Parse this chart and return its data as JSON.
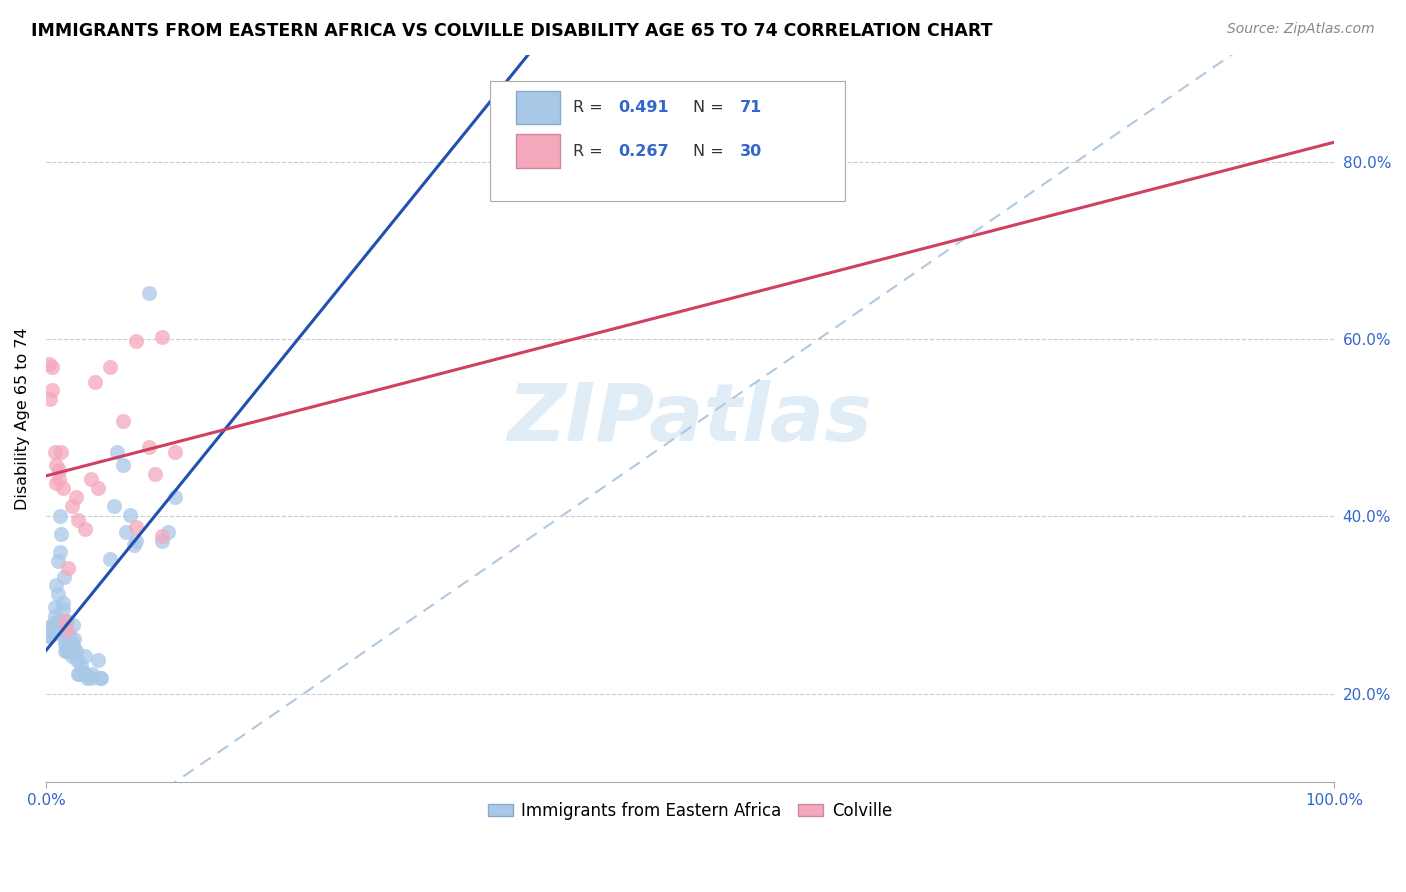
{
  "title": "IMMIGRANTS FROM EASTERN AFRICA VS COLVILLE DISABILITY AGE 65 TO 74 CORRELATION CHART",
  "source": "Source: ZipAtlas.com",
  "ylabel": "Disability Age 65 to 74",
  "legend_label1": "Immigrants from Eastern Africa",
  "legend_label2": "Colville",
  "color_blue": "#a8c8e8",
  "color_pink": "#f4a8bc",
  "line_blue": "#2050b0",
  "line_pink": "#d04060",
  "diag_color": "#b0c8e0",
  "watermark": "ZIPatlas",
  "xlim": [
    0.0,
    1.0
  ],
  "ylim": [
    0.1,
    0.92
  ],
  "x_tick_positions": [
    0.0,
    1.0
  ],
  "x_tick_labels": [
    "0.0%",
    "100.0%"
  ],
  "y_tick_positions": [
    0.2,
    0.4,
    0.6,
    0.8
  ],
  "y_tick_labels": [
    "20.0%",
    "40.0%",
    "60.0%",
    "80.0%"
  ],
  "blue_points": [
    [
      0.002,
      0.275
    ],
    [
      0.002,
      0.265
    ],
    [
      0.003,
      0.27
    ],
    [
      0.003,
      0.265
    ],
    [
      0.004,
      0.27
    ],
    [
      0.004,
      0.275
    ],
    [
      0.005,
      0.27
    ],
    [
      0.005,
      0.268
    ],
    [
      0.006,
      0.28
    ],
    [
      0.006,
      0.272
    ],
    [
      0.007,
      0.268
    ],
    [
      0.007,
      0.298
    ],
    [
      0.007,
      0.288
    ],
    [
      0.008,
      0.278
    ],
    [
      0.008,
      0.322
    ],
    [
      0.009,
      0.35
    ],
    [
      0.009,
      0.312
    ],
    [
      0.01,
      0.272
    ],
    [
      0.01,
      0.282
    ],
    [
      0.01,
      0.276
    ],
    [
      0.011,
      0.36
    ],
    [
      0.011,
      0.4
    ],
    [
      0.012,
      0.38
    ],
    [
      0.012,
      0.272
    ],
    [
      0.013,
      0.302
    ],
    [
      0.013,
      0.296
    ],
    [
      0.014,
      0.332
    ],
    [
      0.014,
      0.272
    ],
    [
      0.015,
      0.262
    ],
    [
      0.015,
      0.248
    ],
    [
      0.015,
      0.256
    ],
    [
      0.016,
      0.282
    ],
    [
      0.016,
      0.248
    ],
    [
      0.017,
      0.248
    ],
    [
      0.017,
      0.256
    ],
    [
      0.018,
      0.266
    ],
    [
      0.018,
      0.252
    ],
    [
      0.019,
      0.256
    ],
    [
      0.02,
      0.258
    ],
    [
      0.02,
      0.242
    ],
    [
      0.021,
      0.278
    ],
    [
      0.022,
      0.262
    ],
    [
      0.022,
      0.252
    ],
    [
      0.023,
      0.248
    ],
    [
      0.024,
      0.238
    ],
    [
      0.025,
      0.222
    ],
    [
      0.026,
      0.222
    ],
    [
      0.027,
      0.232
    ],
    [
      0.028,
      0.226
    ],
    [
      0.03,
      0.242
    ],
    [
      0.03,
      0.222
    ],
    [
      0.032,
      0.218
    ],
    [
      0.035,
      0.218
    ],
    [
      0.036,
      0.222
    ],
    [
      0.04,
      0.238
    ],
    [
      0.042,
      0.218
    ],
    [
      0.043,
      0.218
    ],
    [
      0.05,
      0.352
    ],
    [
      0.053,
      0.412
    ],
    [
      0.055,
      0.472
    ],
    [
      0.06,
      0.458
    ],
    [
      0.062,
      0.382
    ],
    [
      0.065,
      0.402
    ],
    [
      0.068,
      0.368
    ],
    [
      0.07,
      0.372
    ],
    [
      0.08,
      0.652
    ],
    [
      0.09,
      0.372
    ],
    [
      0.095,
      0.382
    ],
    [
      0.1,
      0.422
    ]
  ],
  "pink_points": [
    [
      0.002,
      0.572
    ],
    [
      0.003,
      0.532
    ],
    [
      0.005,
      0.542
    ],
    [
      0.005,
      0.568
    ],
    [
      0.007,
      0.472
    ],
    [
      0.008,
      0.438
    ],
    [
      0.008,
      0.458
    ],
    [
      0.01,
      0.452
    ],
    [
      0.01,
      0.442
    ],
    [
      0.012,
      0.472
    ],
    [
      0.013,
      0.432
    ],
    [
      0.015,
      0.282
    ],
    [
      0.016,
      0.272
    ],
    [
      0.017,
      0.342
    ],
    [
      0.02,
      0.412
    ],
    [
      0.023,
      0.422
    ],
    [
      0.025,
      0.396
    ],
    [
      0.03,
      0.386
    ],
    [
      0.035,
      0.442
    ],
    [
      0.038,
      0.552
    ],
    [
      0.04,
      0.432
    ],
    [
      0.05,
      0.568
    ],
    [
      0.06,
      0.508
    ],
    [
      0.07,
      0.388
    ],
    [
      0.07,
      0.598
    ],
    [
      0.08,
      0.478
    ],
    [
      0.085,
      0.448
    ],
    [
      0.09,
      0.378
    ],
    [
      0.09,
      0.602
    ],
    [
      0.1,
      0.472
    ]
  ]
}
